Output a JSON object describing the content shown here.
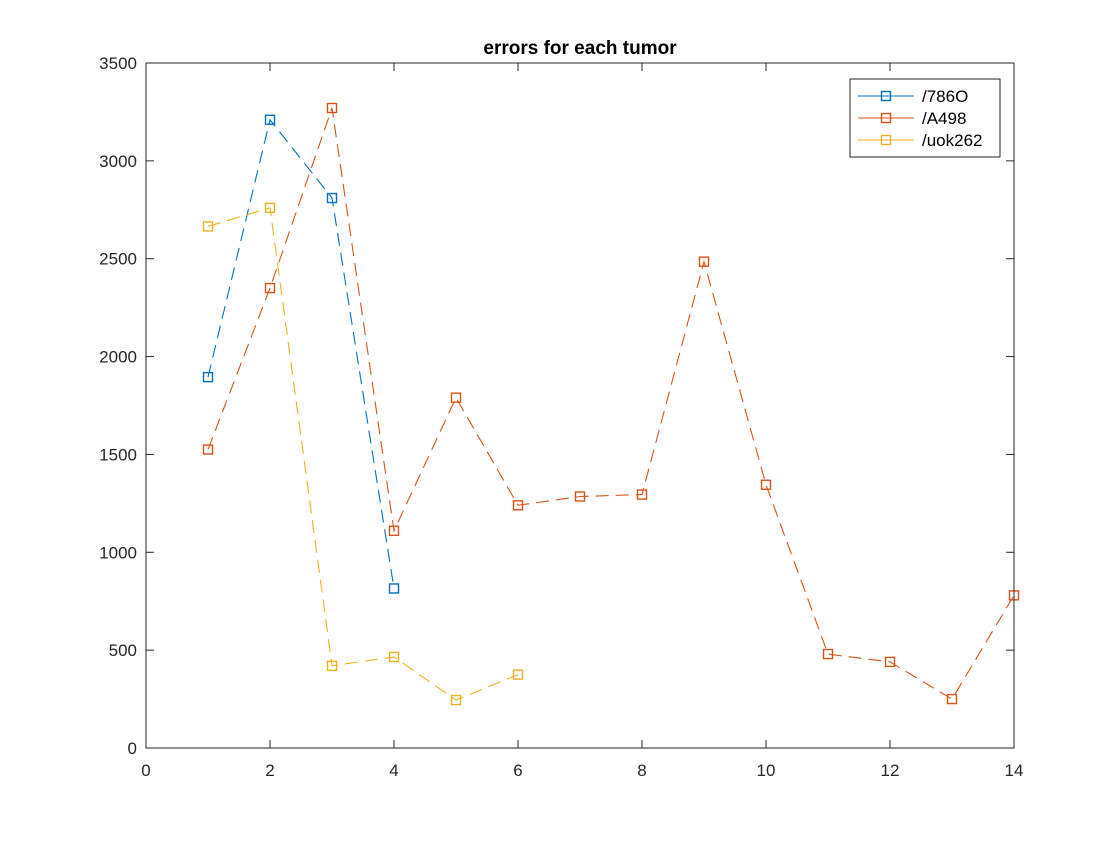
{
  "chart_data": {
    "type": "line",
    "title": "errors for each tumor",
    "xlabel": "",
    "ylabel": "",
    "xlim": [
      0,
      14
    ],
    "ylim": [
      0,
      3500
    ],
    "xticks": [
      0,
      2,
      4,
      6,
      8,
      10,
      12,
      14
    ],
    "yticks": [
      0,
      500,
      1000,
      1500,
      2000,
      2500,
      3000,
      3500
    ],
    "grid": false,
    "legend_position": "top-right",
    "series": [
      {
        "name": "/786O",
        "color": "#0072BD",
        "marker": "square",
        "line_style": "dashed",
        "x": [
          1,
          2,
          3,
          4
        ],
        "y": [
          1895,
          3210,
          2810,
          815
        ]
      },
      {
        "name": "/A498",
        "color": "#D95319",
        "marker": "square",
        "line_style": "dashed",
        "x": [
          1,
          2,
          3,
          4,
          5,
          6,
          7,
          8,
          9,
          10,
          11,
          12,
          13,
          14
        ],
        "y": [
          1525,
          2350,
          3270,
          1110,
          1790,
          1240,
          1285,
          1295,
          2485,
          1345,
          480,
          440,
          250,
          780
        ]
      },
      {
        "name": "/uok262",
        "color": "#EDB120",
        "marker": "square",
        "line_style": "dashed",
        "x": [
          1,
          2,
          3,
          4,
          5,
          6
        ],
        "y": [
          2665,
          2760,
          420,
          465,
          245,
          375
        ]
      }
    ]
  }
}
